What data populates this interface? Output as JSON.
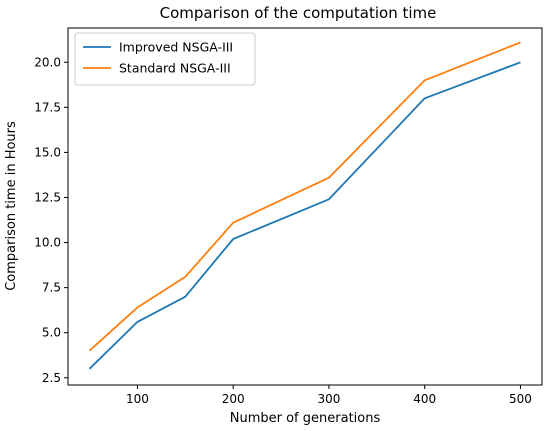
{
  "chart_data": {
    "type": "line",
    "title": "Comparison of the computation time",
    "xlabel": "Number of generations",
    "ylabel": "Comparison time in Hours",
    "x": [
      50,
      100,
      150,
      200,
      300,
      400,
      500
    ],
    "series": [
      {
        "name": "Improved NSGA-III",
        "color": "#1f77b4",
        "values": [
          3.0,
          5.6,
          7.0,
          10.2,
          12.4,
          18.0,
          20.0
        ]
      },
      {
        "name": "Standard NSGA-III",
        "color": "#ff7f0e",
        "values": [
          4.0,
          6.4,
          8.1,
          11.1,
          13.6,
          19.0,
          21.1
        ]
      }
    ],
    "xticks": [
      100,
      200,
      300,
      400,
      500
    ],
    "yticks": [
      2.5,
      5.0,
      7.5,
      10.0,
      12.5,
      15.0,
      17.5,
      20.0
    ],
    "xlim": [
      27.5,
      522.5
    ],
    "ylim": [
      2.1,
      21.9
    ],
    "grid": false,
    "legend": "top-left"
  }
}
